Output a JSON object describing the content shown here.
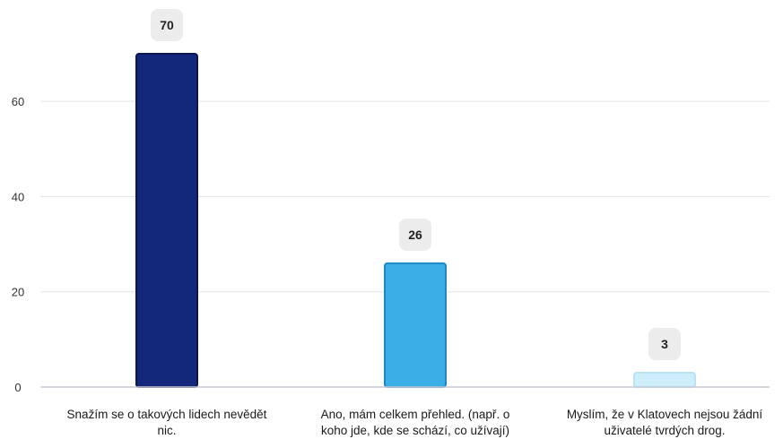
{
  "chart_data": {
    "type": "bar",
    "categories": [
      [
        "Snažím se o takových lidech nevědět",
        "nic."
      ],
      [
        "Ano, mám celkem přehled. (např. o",
        "koho jde, kde se schází, co užívají)"
      ],
      [
        "Myslím, že v Klatovech nejsou žádní",
        "uživatelé tvrdých drog."
      ]
    ],
    "values": [
      70,
      26,
      3
    ],
    "ylim": [
      0,
      70
    ],
    "yticks": [
      0,
      20,
      40,
      60
    ],
    "grid": true,
    "colors": [
      "#13287a",
      "#3aaee6",
      "#cdeefa"
    ],
    "stroke_colors": [
      "#0b1850",
      "#1e88c4",
      "#b7e3f3"
    ],
    "title": "",
    "xlabel": "",
    "ylabel": ""
  }
}
